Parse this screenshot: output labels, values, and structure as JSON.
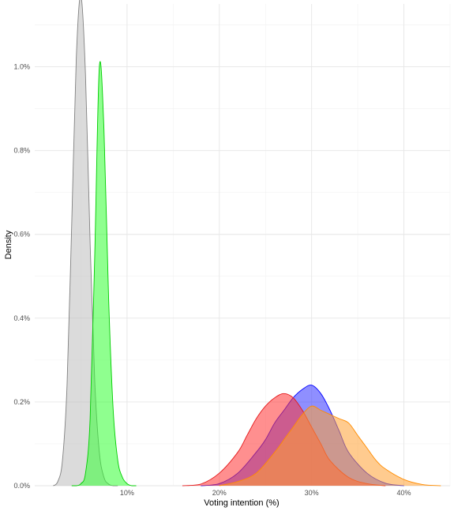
{
  "chart_data": {
    "type": "area",
    "title": "",
    "xlabel": "Voting intention (%)",
    "ylabel": "Density",
    "xlim": [
      0.0,
      0.45
    ],
    "ylim": [
      0,
      0.0115
    ],
    "x_ticks": [
      0.1,
      0.2,
      0.3,
      0.4
    ],
    "x_tick_labels": [
      "10%",
      "20%",
      "30%",
      "40%"
    ],
    "y_ticks": [
      0.0,
      0.002,
      0.004,
      0.006,
      0.008,
      0.01
    ],
    "y_tick_labels": [
      "0.0%",
      "0.2%",
      "0.4%",
      "0.6%",
      "0.8%",
      "1.0%"
    ],
    "grid": true,
    "legend": "none",
    "series": [
      {
        "color": "#bdbdbd",
        "stroke": "#808080",
        "x": [
          0.02,
          0.025,
          0.03,
          0.035,
          0.04,
          0.045,
          0.05,
          0.055,
          0.06,
          0.065,
          0.07,
          0.075,
          0.08,
          0.085,
          0.09
        ],
        "y": [
          0.0,
          0.0001,
          0.0006,
          0.0024,
          0.0062,
          0.0102,
          0.0117,
          0.0098,
          0.0058,
          0.0025,
          0.0008,
          0.0002,
          4e-05,
          0.0,
          0.0
        ]
      },
      {
        "color": "#33ff33",
        "stroke": "#00cc00",
        "x": [
          0.04,
          0.045,
          0.05,
          0.055,
          0.06,
          0.065,
          0.07,
          0.075,
          0.08,
          0.085,
          0.09,
          0.095,
          0.1,
          0.105,
          0.11
        ],
        "y": [
          0.0,
          0.0,
          5e-05,
          0.0003,
          0.0016,
          0.0055,
          0.01,
          0.0085,
          0.0045,
          0.0018,
          0.0006,
          0.0002,
          5e-05,
          0.0,
          0.0
        ]
      },
      {
        "color": "#3333ff",
        "stroke": "#0000ff",
        "x": [
          0.18,
          0.2,
          0.22,
          0.24,
          0.25,
          0.26,
          0.27,
          0.28,
          0.29,
          0.3,
          0.31,
          0.32,
          0.33,
          0.34,
          0.36,
          0.38,
          0.4
        ],
        "y": [
          0.0,
          5e-05,
          0.0003,
          0.0008,
          0.0011,
          0.0015,
          0.0018,
          0.0021,
          0.0023,
          0.0024,
          0.0022,
          0.0018,
          0.0013,
          0.0008,
          0.0003,
          6e-05,
          0.0
        ]
      },
      {
        "color": "#ff3333",
        "stroke": "#e41a1c",
        "x": [
          0.16,
          0.18,
          0.2,
          0.22,
          0.23,
          0.24,
          0.25,
          0.26,
          0.27,
          0.28,
          0.29,
          0.3,
          0.31,
          0.32,
          0.34,
          0.36,
          0.38
        ],
        "y": [
          0.0,
          4e-05,
          0.0003,
          0.0008,
          0.0012,
          0.0016,
          0.0019,
          0.0021,
          0.0022,
          0.0021,
          0.0018,
          0.0014,
          0.001,
          0.0006,
          0.0002,
          5e-05,
          0.0
        ]
      },
      {
        "color": "#ffa033",
        "stroke": "#ff8c00",
        "x": [
          0.2,
          0.22,
          0.24,
          0.26,
          0.27,
          0.28,
          0.29,
          0.3,
          0.31,
          0.32,
          0.33,
          0.34,
          0.35,
          0.36,
          0.37,
          0.38,
          0.4,
          0.42,
          0.44
        ],
        "y": [
          0.0,
          0.0001,
          0.0003,
          0.0008,
          0.0011,
          0.0014,
          0.0017,
          0.0019,
          0.0018,
          0.0017,
          0.0016,
          0.0015,
          0.0012,
          0.0009,
          0.0006,
          0.0004,
          0.00015,
          3e-05,
          0.0
        ]
      }
    ]
  }
}
